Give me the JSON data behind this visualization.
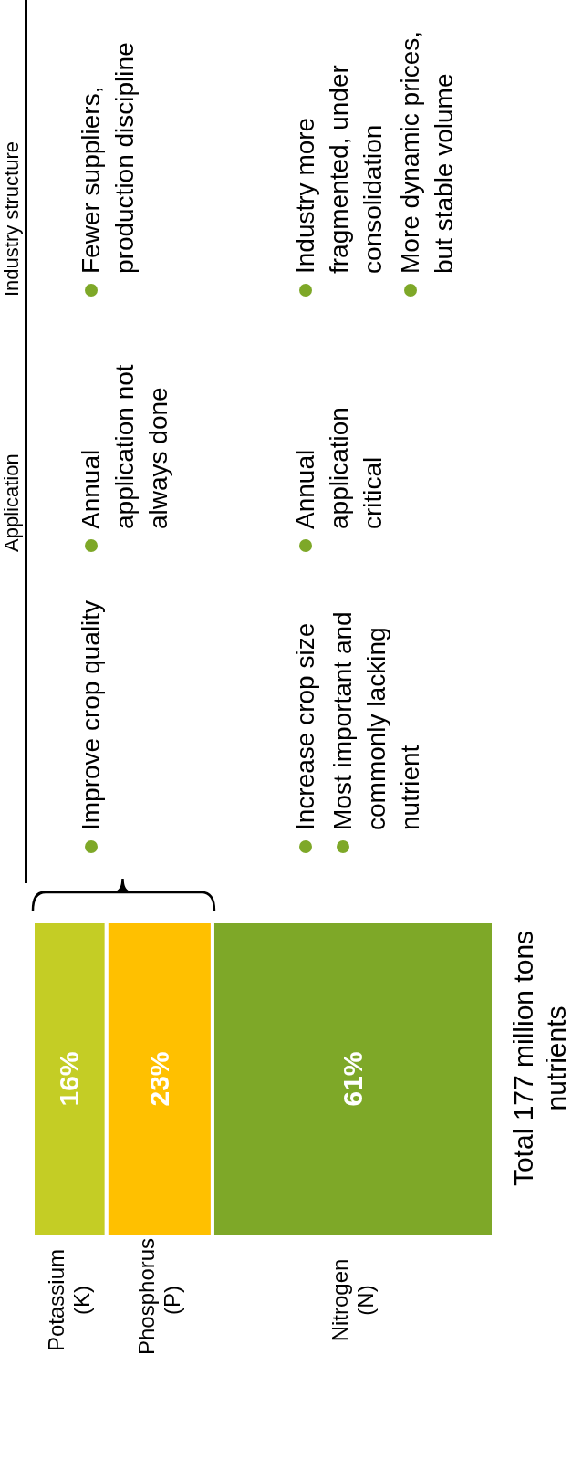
{
  "chart_data": {
    "type": "bar",
    "stacked": true,
    "orientation": "horizontal",
    "categories": [
      null
    ],
    "data_labels": true,
    "series": [
      {
        "name": "Potassium (K)",
        "color": "#c4cd25",
        "values": [
          16
        ],
        "value_labels": [
          "16%"
        ]
      },
      {
        "name": "Phosphorus (P)",
        "color": "#ffc000",
        "values": [
          23
        ],
        "value_labels": [
          "23%"
        ]
      },
      {
        "name": "Nitrogen (N)",
        "color": "#7ea828",
        "values": [
          61
        ],
        "value_labels": [
          "61%"
        ]
      }
    ],
    "annotations": [
      "Total 177 million tons nutrients",
      "Application",
      "Industry structure",
      "Improve crop quality",
      "Annual application not always done",
      "Fewer suppliers, production discipline",
      "Increase crop size",
      "Most important and commonly lacking nutrient",
      "Annual application critical",
      "Industry more fragmented, under consolidation",
      "More dynamic prices, but stable volume"
    ]
  }
}
